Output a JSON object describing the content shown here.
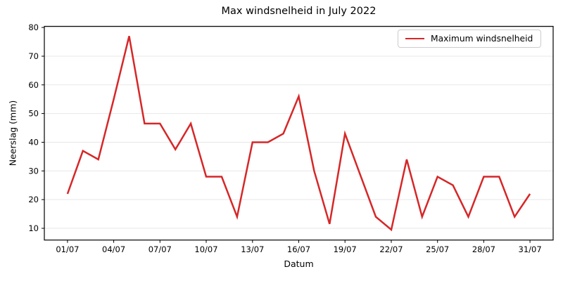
{
  "figure": {
    "title": "Max windsnelheid in July 2022",
    "xlabel": "Datum",
    "ylabel": "Neerslag (mm)",
    "legend": {
      "label": "Maximum windsnelheid",
      "position": "upper right"
    }
  },
  "chart_data": {
    "type": "line",
    "title": "Max windsnelheid in July 2022",
    "xlabel": "Datum",
    "ylabel": "Neerslag (mm)",
    "legend_entries": [
      "Maximum windsnelheid"
    ],
    "legend_position": "upper right",
    "x": [
      "01/07",
      "02/07",
      "03/07",
      "04/07",
      "05/07",
      "06/07",
      "07/07",
      "08/07",
      "09/07",
      "10/07",
      "11/07",
      "12/07",
      "13/07",
      "14/07",
      "15/07",
      "16/07",
      "17/07",
      "18/07",
      "19/07",
      "20/07",
      "21/07",
      "22/07",
      "23/07",
      "24/07",
      "25/07",
      "26/07",
      "27/07",
      "28/07",
      "29/07",
      "30/07",
      "31/07"
    ],
    "values": [
      22,
      37,
      34,
      55,
      77,
      46.5,
      46.5,
      37.5,
      46.5,
      28,
      28,
      14,
      40,
      40,
      43,
      56,
      30,
      11.5,
      43,
      28.5,
      14,
      9.5,
      34,
      14,
      28,
      25,
      14,
      28,
      28,
      14,
      22
    ],
    "xtick_labels": [
      "01/07",
      "04/07",
      "07/07",
      "10/07",
      "13/07",
      "16/07",
      "19/07",
      "22/07",
      "25/07",
      "28/07",
      "31/07"
    ],
    "xtick_days": [
      1,
      4,
      7,
      10,
      13,
      16,
      19,
      22,
      25,
      28,
      31
    ],
    "yticks": [
      10,
      20,
      30,
      40,
      50,
      60,
      70,
      80
    ],
    "ylim": [
      5.9,
      80.4
    ],
    "xlim_days": [
      -0.5,
      32.5
    ],
    "grid": "horizontal-only",
    "line_color": "#d62728",
    "line_width": 2.5
  },
  "colors": {
    "line": "#d62728",
    "grid": "#e7e7e7",
    "spine": "#000000",
    "background": "#ffffff",
    "legend_border": "#cccccc",
    "text": "#000000"
  }
}
